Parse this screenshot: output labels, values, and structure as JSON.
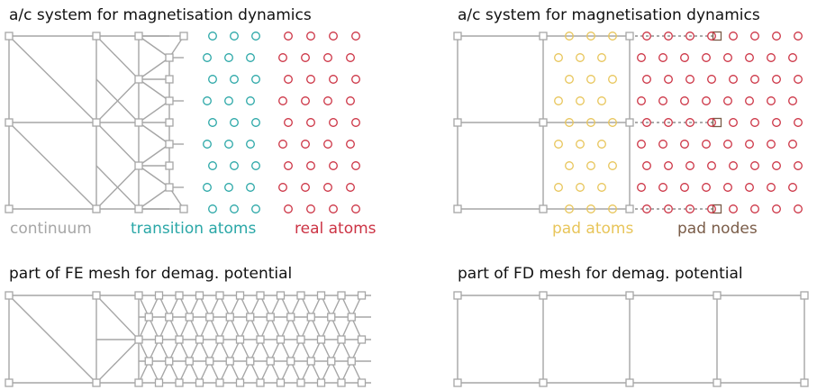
{
  "panels": {
    "top_left": {
      "title": "a/c system for magnetisation dynamics",
      "legend": {
        "continuum": "continuum",
        "transition": "transition atoms",
        "real": "real atoms"
      }
    },
    "top_right": {
      "title": "a/c system for magnetisation dynamics",
      "legend": {
        "pad_atoms": "pad atoms",
        "pad_nodes": "pad nodes"
      }
    },
    "bottom_left": {
      "title": "part of FE mesh for demag. potential"
    },
    "bottom_right": {
      "title": "part of FD mesh for demag. potential"
    }
  },
  "colors": {
    "mesh": "#a6a6a6",
    "continuum": "#a6a6a6",
    "transition": "#2aa7a7",
    "real": "#cc3344",
    "pad_atoms": "#e8c55a",
    "pad_nodes": "#7a5c48"
  }
}
